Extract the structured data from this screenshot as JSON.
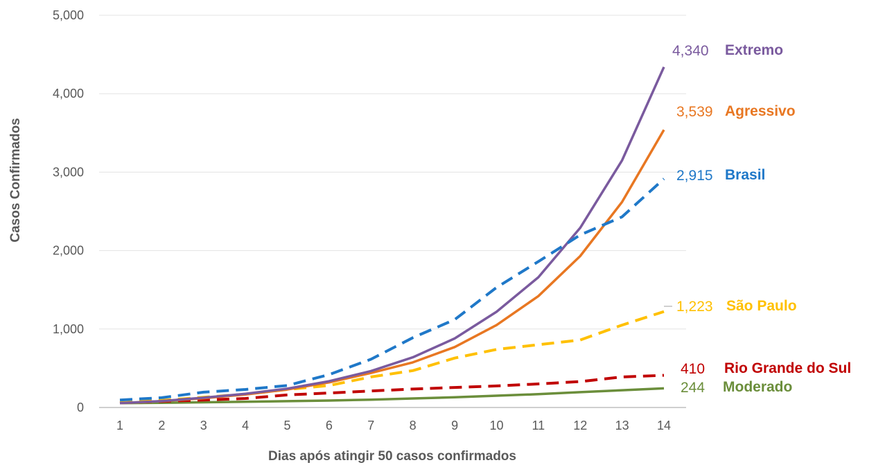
{
  "chart_data": {
    "type": "line",
    "xlabel": "Dias após atingir 50 casos confirmados",
    "ylabel": "Casos Confirmados",
    "ylim": [
      0,
      5000
    ],
    "yticks": [
      "0",
      "1,000",
      "2,000",
      "3,000",
      "4,000",
      "5,000"
    ],
    "x": [
      1,
      2,
      3,
      4,
      5,
      6,
      7,
      8,
      9,
      10,
      11,
      12,
      13,
      14
    ],
    "grid": "horizontal",
    "legend": "direct labels at line ends (right)",
    "series": [
      {
        "name": "Extremo",
        "end_label": "4,340",
        "color": "#7a5a9e",
        "style": "solid",
        "values": [
          55,
          82,
          125,
          175,
          240,
          335,
          465,
          640,
          880,
          1220,
          1660,
          2290,
          3150,
          4340
        ]
      },
      {
        "name": "Agressivo",
        "end_label": "3,539",
        "color": "#e87722",
        "style": "solid",
        "values": [
          55,
          80,
          118,
          165,
          230,
          320,
          440,
          575,
          770,
          1050,
          1420,
          1930,
          2620,
          3539
        ]
      },
      {
        "name": "Brasil",
        "end_label": "2,915",
        "color": "#1f78c8",
        "style": "dashed",
        "values": [
          95,
          125,
          195,
          230,
          280,
          420,
          615,
          890,
          1120,
          1530,
          1860,
          2200,
          2430,
          2915
        ]
      },
      {
        "name": "São Paulo",
        "end_label": "1,223",
        "color": "#ffc000",
        "style": "dashed",
        "values": [
          60,
          90,
          130,
          170,
          230,
          280,
          390,
          470,
          630,
          740,
          800,
          860,
          1050,
          1223
        ]
      },
      {
        "name": "Rio Grande do Sul",
        "end_label": "410",
        "color": "#c00000",
        "style": "dashed",
        "values": [
          60,
          78,
          95,
          115,
          160,
          185,
          210,
          235,
          255,
          275,
          300,
          330,
          390,
          410
        ]
      },
      {
        "name": "Moderado",
        "end_label": "244",
        "color": "#6b8e3b",
        "style": "solid",
        "values": [
          55,
          60,
          66,
          72,
          80,
          88,
          100,
          115,
          130,
          150,
          170,
          195,
          220,
          244
        ]
      }
    ]
  }
}
